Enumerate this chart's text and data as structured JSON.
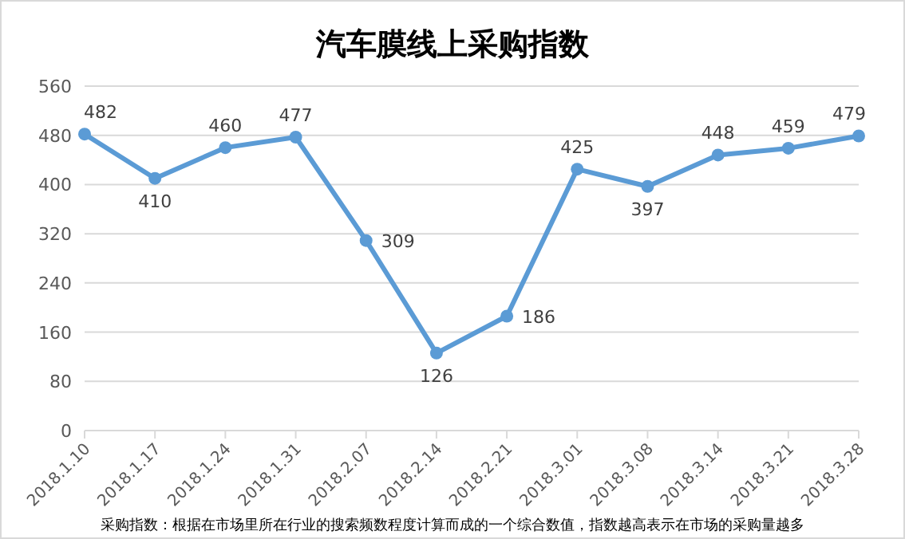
{
  "chart_data": {
    "type": "line",
    "title": "汽车膜线上采购指数",
    "categories": [
      "2018.1.10",
      "2018.1.17",
      "2018.1.24",
      "2018.1.31",
      "2018.2.07",
      "2018.2.14",
      "2018.2.21",
      "2018.3.01",
      "2018.3.08",
      "2018.3.14",
      "2018.3.21",
      "2018.3.28"
    ],
    "series": [
      {
        "color": "#5b9bd5",
        "values": [
          482,
          410,
          460,
          477,
          309,
          126,
          186,
          425,
          397,
          448,
          459,
          479
        ]
      }
    ],
    "ylim": [
      0,
      560
    ],
    "yticks": [
      0,
      80,
      160,
      240,
      320,
      400,
      480,
      560
    ],
    "grid": "y",
    "marker": "circle",
    "line_style": "solid",
    "data_labels": true,
    "annotations": [
      "采购指数：根据在市场里所在行业的搜索频数程度计算而成的一个综合数值，指数越高表示在市场的采购量越多"
    ]
  }
}
